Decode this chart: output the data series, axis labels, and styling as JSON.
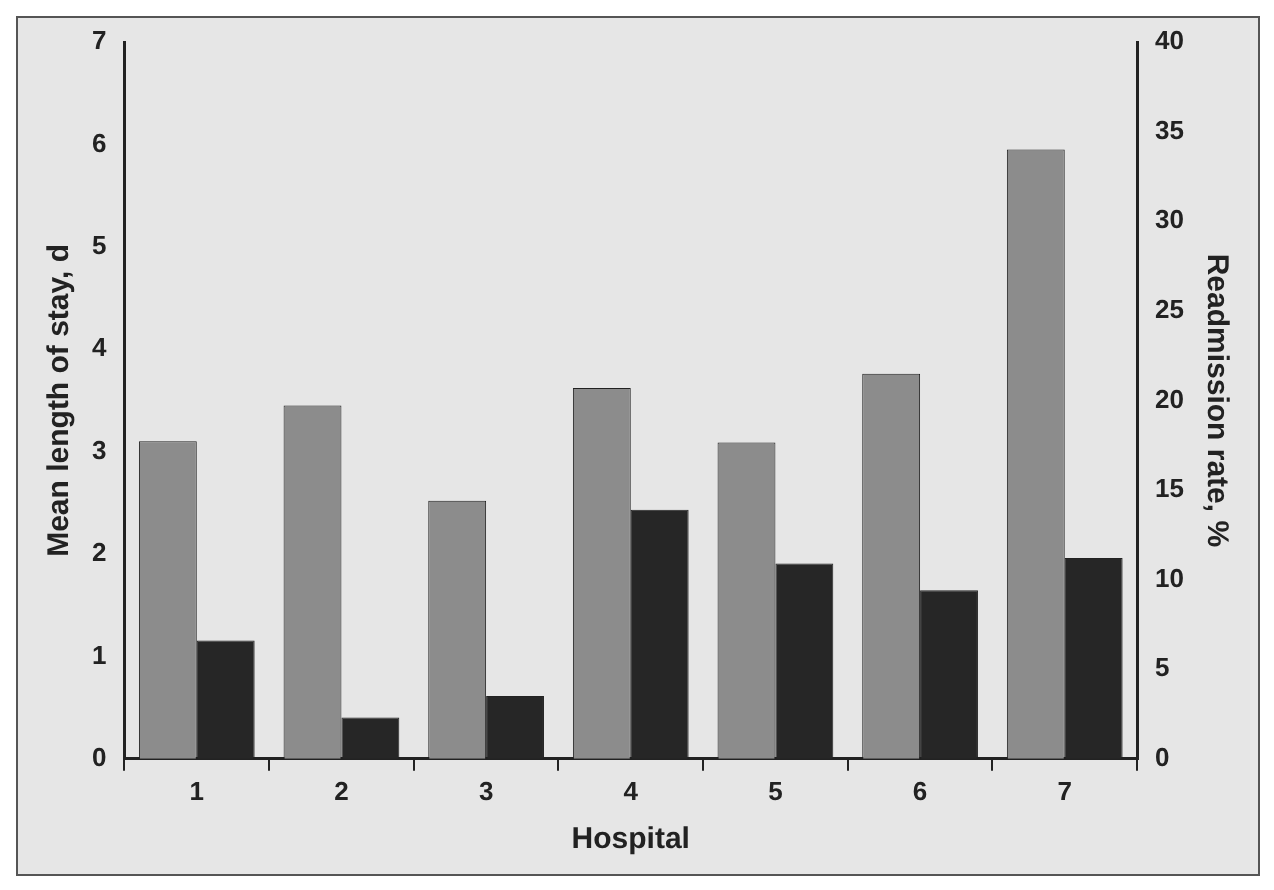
{
  "chart_data": {
    "type": "bar",
    "xlabel": "Hospital",
    "ylabel": "Mean length of stay, d",
    "y2label": "Readmission rate, %",
    "categories": [
      "1",
      "2",
      "3",
      "4",
      "5",
      "6",
      "7"
    ],
    "series": [
      {
        "color": "#8c8c8c",
        "values": [
          3.1,
          3.45,
          2.52,
          3.62,
          3.09,
          3.76,
          5.95
        ]
      },
      {
        "color": "#262626",
        "axis": "y2",
        "values": [
          6.6,
          2.3,
          3.5,
          13.9,
          10.9,
          9.4,
          11.2
        ]
      }
    ],
    "ylim": [
      0,
      7
    ],
    "yticks": [
      0,
      1,
      2,
      3,
      4,
      5,
      6,
      7
    ],
    "y2lim": [
      0,
      40
    ],
    "y2ticks": [
      0,
      5,
      10,
      15,
      20,
      25,
      30,
      35,
      40
    ],
    "grid": false,
    "legend": false
  }
}
